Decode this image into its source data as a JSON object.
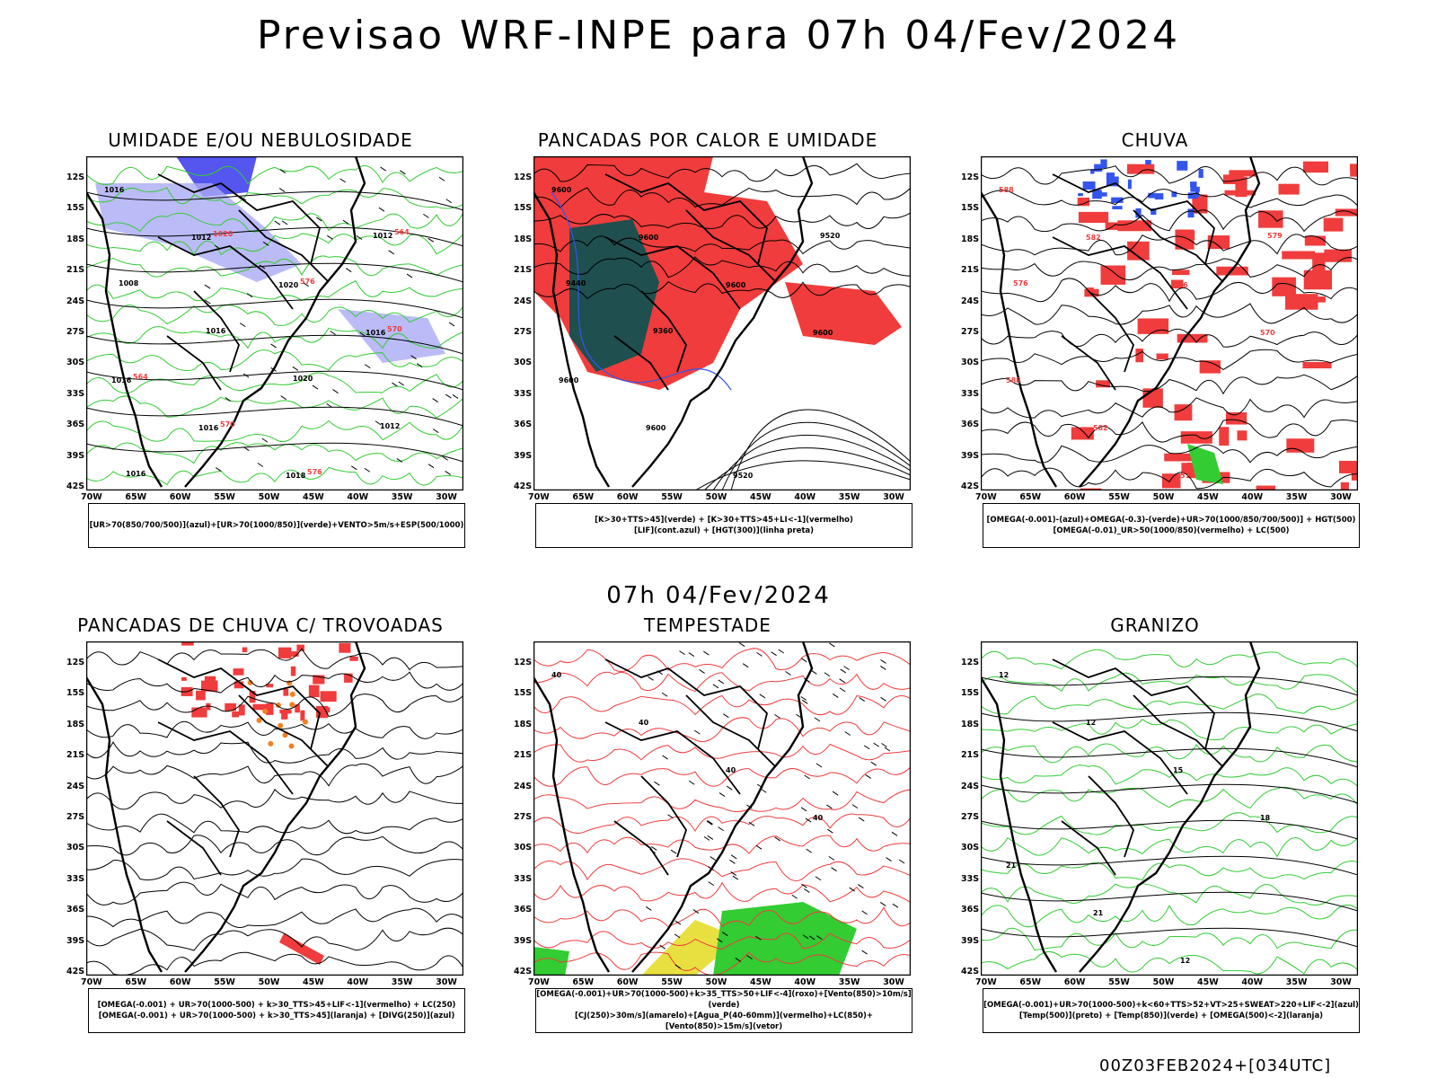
{
  "header": {
    "title": "Previsao WRF-INPE  para 07h 04/Fev/2024"
  },
  "middle": {
    "title": "07h 04/Fev/2024"
  },
  "footer": {
    "text": "00Z03FEB2024+[034UTC]"
  },
  "axes": {
    "lat_labels": [
      "12S",
      "15S",
      "18S",
      "21S",
      "24S",
      "27S",
      "30S",
      "33S",
      "36S",
      "39S",
      "42S"
    ],
    "lon_labels": [
      "70W",
      "65W",
      "60W",
      "55W",
      "50W",
      "45W",
      "40W",
      "35W",
      "30W"
    ]
  },
  "colors": {
    "green": "#33cc33",
    "blue": "#3355ee",
    "red": "#f03c3c",
    "darkteal": "#1f4f4f",
    "lavender": "#aaaaf5",
    "orange": "#f08020",
    "purple": "#a020f0",
    "yellow": "#e8e040"
  },
  "panels": [
    {
      "title": "UMIDADE E/OU NEBULOSIDADE",
      "legend": [
        "[UR>70(850/700/500)](azul)+[UR>70(1000/850)](verde)+VENTO>5m/s+ESP(500/1000)"
      ],
      "labels": [
        "1016",
        "1012",
        "1020",
        "1016",
        "1016",
        "1016",
        "1018",
        "1012",
        "1008",
        "1016",
        "1020",
        "1012",
        "1016",
        "1020",
        "576",
        "570",
        "564",
        "570",
        "576",
        "564"
      ]
    },
    {
      "title": "PANCADAS POR CALOR E UMIDADE",
      "legend": [
        "[K>30+TTS>45](verde) + [K>30+TTS>45+LI<-1](vermelho)",
        "[LIF](cont.azul) + [HGT(300)](linha preta)"
      ],
      "labels": [
        "9600",
        "9600",
        "9600",
        "9600",
        "9600",
        "9600",
        "9520",
        "9520",
        "9440",
        "9360"
      ]
    },
    {
      "title": "CHUVA",
      "legend": [
        "[OMEGA(-0.001)-(azul)+OMEGA(-0.3)-(verde)+UR>70(1000/850/700/500)] + HGT(500)",
        "[OMEGA(-0.01)_UR>50(1000/850)(vermelho) + LC(500)"
      ],
      "labels": [
        "588",
        "582",
        "576",
        "570",
        "588",
        "582",
        "576",
        "579",
        "576"
      ]
    },
    {
      "title": "PANCADAS DE CHUVA C/ TROVOADAS",
      "legend": [
        "[OMEGA(-0.001) + UR>70(1000-500) + k>30_TTS>45+LIF<-1](vermelho) + LC(250)",
        "[OMEGA(-0.001) + UR>70(1000-500) + k>30_TTS>45](laranja) + [DIVG(250)](azul)"
      ],
      "labels": []
    },
    {
      "title": "TEMPESTADE",
      "legend": [
        "[OMEGA(-0.001)+UR>70(1000-500)+k>35_TTS>50+LIF<-4](roxo)+[Vento(850)>10m/s](verde)",
        "[CJ(250)>30m/s](amarelo)+[Agua_P(40-60mm)](vermelho)+LC(850)+[Vento(850)>15m/s](vetor)"
      ],
      "labels": [
        "40",
        "40",
        "40",
        "40"
      ]
    },
    {
      "title": "GRANIZO",
      "legend": [
        "[OMEGA(-0.001)+UR>70(1000-500)+k<60+TTS>52+VT>25+SWEAT>220+LIF<-2](azul)",
        "[Temp(500)](preto) + [Temp(850)](verde) + [OMEGA(500)<-2](laranja)"
      ],
      "labels": [
        "12",
        "12",
        "15",
        "18",
        "21",
        "21",
        "12"
      ]
    }
  ]
}
